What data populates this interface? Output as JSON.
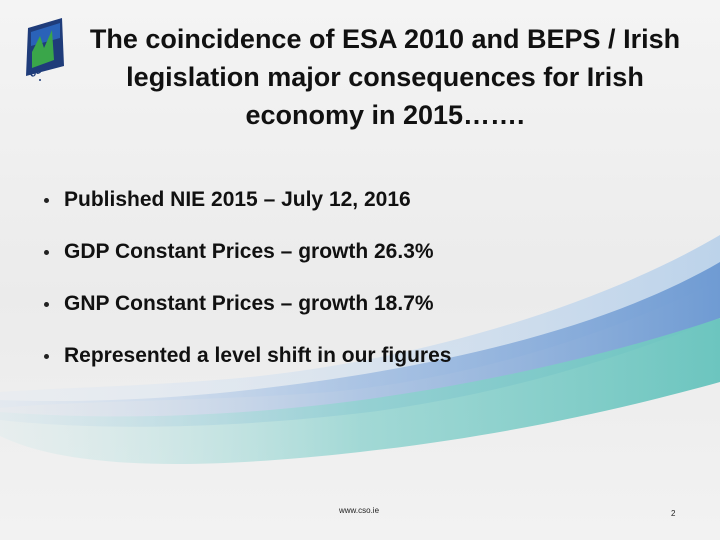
{
  "title": "The coincidence of ESA 2010 and BEPS / Irish legislation major consequences for Irish economy in 2015…….",
  "bullets": [
    "Published NIE 2015 – July 12, 2016",
    "GDP Constant Prices – growth 26.3%",
    "GNP Constant Prices – growth 18.7%",
    "Represented a level shift in our figures"
  ],
  "logo": {
    "text": "cso",
    "colors": {
      "green": "#3aa64a",
      "navy": "#1f3c7a",
      "blue": "#2a62b8"
    }
  },
  "footer": {
    "url": "www.cso.ie",
    "page": "2"
  },
  "colors": {
    "swoosh_blue": "#7fa6d6",
    "swoosh_teal": "#74c7c2"
  }
}
